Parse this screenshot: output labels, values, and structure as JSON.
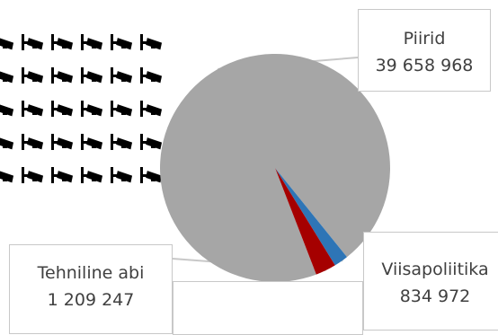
{
  "icons": {
    "name": "surveillance-camera-icon",
    "rows": 5,
    "cols": 6,
    "color": "#000000"
  },
  "chart_data": {
    "type": "pie",
    "title": "",
    "slices": [
      {
        "label": "Piirid",
        "value": 39658968,
        "value_text": "39 658 968",
        "color": "#a6a6a6"
      },
      {
        "label": "Viisapoliitika",
        "value": 834972,
        "value_text": "834 972",
        "color": "#2e75b6"
      },
      {
        "label": "Tehniline abi",
        "value": 1209247,
        "value_text": "1 209 247",
        "color": "#a50000"
      }
    ],
    "start_angle_deg": 159,
    "legend": "none",
    "leader_line_color": "#c8c8c8"
  }
}
